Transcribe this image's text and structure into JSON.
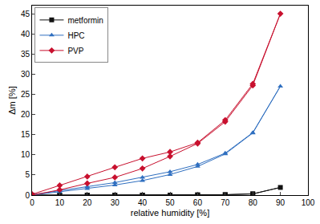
{
  "chart_data": {
    "type": "line",
    "x_label": "relative humidity [%]",
    "y_label": "Δm [%]",
    "xlim": [
      0,
      100
    ],
    "xticks": [
      0,
      10,
      20,
      30,
      40,
      50,
      60,
      70,
      80,
      90,
      100
    ],
    "ylim": [
      0,
      47
    ],
    "yticks": [
      0,
      5,
      10,
      15,
      20,
      25,
      30,
      35,
      40,
      45
    ],
    "grid": false,
    "legend": "upper left",
    "series": [
      {
        "name": "metformin",
        "color": "#111111",
        "marker": "square",
        "line_style": "solid",
        "x": [
          0,
          10,
          20,
          30,
          40,
          50,
          60,
          70,
          80,
          90,
          80,
          70,
          60,
          50,
          40,
          30,
          20,
          10,
          0
        ],
        "values": [
          0,
          0,
          0,
          0,
          0,
          0,
          0.05,
          0.1,
          0.3,
          1.9,
          0.3,
          0.1,
          0.05,
          0,
          0,
          0,
          0,
          0,
          0
        ]
      },
      {
        "name": "HPC",
        "color": "#2f6fc0",
        "marker": "triangle-up",
        "line_style": "solid",
        "x": [
          0,
          10,
          20,
          30,
          40,
          50,
          60,
          70,
          80,
          90,
          80,
          70,
          60,
          50,
          40,
          30,
          20,
          10,
          0
        ],
        "values": [
          0,
          0.8,
          1.6,
          2.5,
          3.6,
          5.1,
          7.1,
          10.2,
          15.4,
          27.0,
          15.5,
          10.4,
          7.6,
          5.8,
          4.4,
          3.1,
          2.1,
          1.1,
          0.1
        ]
      },
      {
        "name": "PVP",
        "color": "#c8102e",
        "marker": "diamond",
        "line_style": "solid",
        "x": [
          0,
          10,
          20,
          30,
          40,
          50,
          60,
          70,
          80,
          90,
          80,
          70,
          60,
          50,
          40,
          30,
          20,
          10,
          0
        ],
        "values": [
          0,
          1.3,
          2.9,
          4.4,
          6.6,
          9.6,
          12.8,
          18.2,
          27.2,
          45.0,
          27.6,
          18.6,
          13.0,
          10.7,
          9.1,
          6.9,
          4.6,
          2.4,
          0.2
        ]
      }
    ]
  }
}
